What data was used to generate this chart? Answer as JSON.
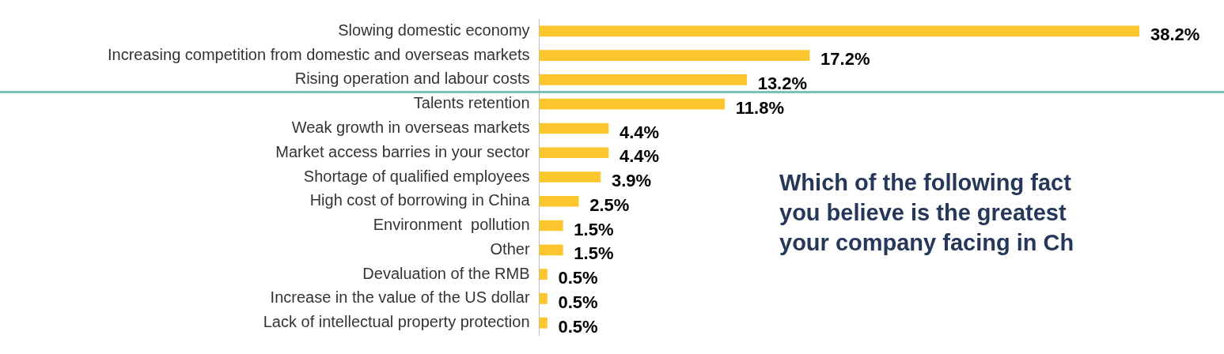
{
  "chart_data": {
    "type": "bar",
    "orientation": "horizontal",
    "grid": false,
    "legend": false,
    "tick_labels": "y",
    "categories": [
      "Slowing domestic economy",
      "Increasing competition from domestic and overseas markets",
      "Rising operation and labour costs",
      "Talents retention",
      "Weak growth in overseas markets",
      "Market access barries in your sector",
      "Shortage of qualified employees",
      "High cost of borrowing in China",
      "Environment  pollution",
      "Other",
      "Devaluation of the RMB",
      "Increase in the value of the US dollar",
      "Lack of intellectual property protection"
    ],
    "series": [
      {
        "color": "#fcc62f",
        "values": [
          38.2,
          17.2,
          13.2,
          11.8,
          4.4,
          4.4,
          3.9,
          2.5,
          1.5,
          1.5,
          0.5,
          0.5,
          0.5
        ],
        "value_labels": [
          "38.2%",
          "17.2%",
          "13.2%",
          "11.8%",
          "4.4%",
          "4.4%",
          "3.9%",
          "2.5%",
          "1.5%",
          "1.5%",
          "0.5%",
          "0.5%",
          "0.5%"
        ]
      }
    ],
    "annotations": [
      "Which of the following fact\nyou believe is the greatest\nyour company facing in Ch"
    ]
  }
}
